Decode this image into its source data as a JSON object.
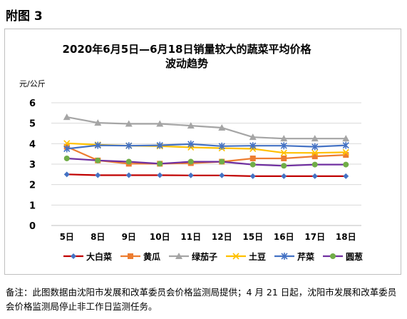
{
  "page_heading": "附图 3",
  "footnote": "备注：此图数据由沈阳市发展和改革委员会价格监测局提供；4 月 21 日起，沈阳市发展和改革委员会价格监测局停止非工作日监测任务。",
  "chart_data": {
    "type": "line",
    "title_line1": "2020年6月5日—6月18日销量较大的蔬菜平均价格",
    "title_line2": "波动趋势",
    "ylabel": "元/公斤",
    "xlabel": "",
    "ylim": [
      0,
      6
    ],
    "yticks": [
      0,
      1,
      2,
      3,
      4,
      5,
      6
    ],
    "grid": "horizontal",
    "legend_position": "bottom",
    "categories": [
      "5日",
      "8日",
      "9日",
      "10日",
      "11日",
      "12日",
      "15日",
      "16日",
      "17日",
      "18日"
    ],
    "series": [
      {
        "name": "大白菜",
        "color": "#c00000",
        "marker": "diamond",
        "marker_color": "#4472c4",
        "values": [
          2.5,
          2.46,
          2.46,
          2.46,
          2.45,
          2.45,
          2.41,
          2.41,
          2.41,
          2.41
        ]
      },
      {
        "name": "黄瓜",
        "color": "#ed7d31",
        "marker": "square",
        "marker_color": "#ed7d31",
        "values": [
          3.85,
          3.18,
          3.02,
          3.02,
          3.05,
          3.12,
          3.28,
          3.28,
          3.38,
          3.45
        ]
      },
      {
        "name": "绿茄子",
        "color": "#a5a5a5",
        "marker": "triangle",
        "marker_color": "#a5a5a5",
        "values": [
          5.3,
          5.02,
          4.97,
          4.97,
          4.88,
          4.78,
          4.32,
          4.25,
          4.25,
          4.25
        ]
      },
      {
        "name": "土豆",
        "color": "#ffc000",
        "marker": "x",
        "marker_color": "#ffc000",
        "values": [
          4.02,
          3.95,
          3.9,
          3.88,
          3.82,
          3.78,
          3.75,
          3.55,
          3.55,
          3.58
        ]
      },
      {
        "name": "芹菜",
        "color": "#4472c4",
        "marker": "star",
        "marker_color": "#4472c4",
        "values": [
          3.75,
          3.92,
          3.9,
          3.92,
          3.98,
          3.88,
          3.9,
          3.9,
          3.85,
          3.92
        ]
      },
      {
        "name": "圆葱",
        "color": "#7030a0",
        "marker": "circle",
        "marker_color": "#70ad47",
        "values": [
          3.28,
          3.18,
          3.12,
          3.02,
          3.12,
          3.12,
          2.98,
          2.92,
          2.98,
          2.98
        ]
      }
    ]
  }
}
